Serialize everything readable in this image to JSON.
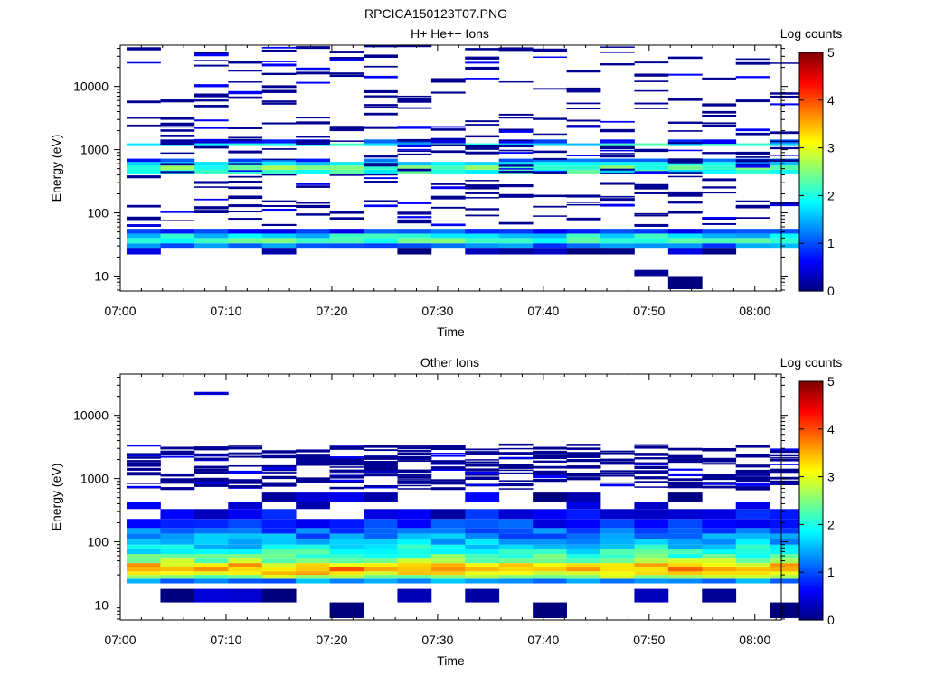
{
  "title": "RPCICA150123T07.PNG",
  "colors": {
    "axis": "#000000",
    "background": "#ffffff",
    "colormap": [
      "#00007f",
      "#0000ff",
      "#0080ff",
      "#00ffff",
      "#80ff80",
      "#ffff00",
      "#ff8000",
      "#ff0000",
      "#7f0000"
    ]
  },
  "chart_data": [
    {
      "type": "heatmap",
      "title": "H+ He++ Ions",
      "xlabel": "Time",
      "ylabel": "Energy (eV)",
      "yscale": "log",
      "xlim_minutes": [
        0,
        62.5
      ],
      "ylim": [
        5.8,
        45000
      ],
      "x_ticks": [
        "07:00",
        "07:10",
        "07:20",
        "07:30",
        "07:40",
        "07:50",
        "08:00"
      ],
      "y_ticks": [
        "10",
        "100",
        "1000",
        "10000"
      ],
      "colorbar": {
        "label": "Log counts",
        "range": [
          0,
          5
        ],
        "ticks": [
          "0",
          "1",
          "2",
          "3",
          "4",
          "5"
        ]
      },
      "n_time_bins": 20,
      "bands": [
        {
          "emin": 28,
          "emax": 33,
          "value": 1.2,
          "fill": "all"
        },
        {
          "emin": 33,
          "emax": 40,
          "value": 2.2,
          "fill": "all"
        },
        {
          "emin": 40,
          "emax": 47,
          "value": 1.8,
          "fill": "all"
        },
        {
          "emin": 47,
          "emax": 56,
          "value": 0.9,
          "fill": "all"
        },
        {
          "emin": 22,
          "emax": 28,
          "value": 0.1,
          "fill": "some"
        },
        {
          "emin": 10,
          "emax": 12.5,
          "value": 0.1,
          "fill": "t15"
        },
        {
          "emin": 6.2,
          "emax": 10,
          "value": 0.1,
          "fill": "t16"
        },
        {
          "emin": 420,
          "emax": 480,
          "value": 2.0,
          "fill": "all"
        },
        {
          "emin": 480,
          "emax": 560,
          "value": 2.3,
          "fill": "all"
        },
        {
          "emin": 560,
          "emax": 640,
          "value": 1.6,
          "fill": "all"
        },
        {
          "emin": 640,
          "emax": 720,
          "value": 1.0,
          "fill": "mostly"
        },
        {
          "emin": 1140,
          "emax": 1260,
          "value": 1.9,
          "fill": "all"
        },
        {
          "emin": 1260,
          "emax": 1450,
          "value": 0.8,
          "fill": "mostly"
        },
        {
          "emin": 60,
          "emax": 42000,
          "value": 0.1,
          "fill": "sparse"
        }
      ]
    },
    {
      "type": "heatmap",
      "title": "Other Ions",
      "xlabel": "Time",
      "ylabel": "Energy (eV)",
      "yscale": "log",
      "xlim_minutes": [
        0,
        62.5
      ],
      "ylim": [
        5.8,
        45000
      ],
      "x_ticks": [
        "07:00",
        "07:10",
        "07:20",
        "07:30",
        "07:40",
        "07:50",
        "08:00"
      ],
      "y_ticks": [
        "10",
        "100",
        "1000",
        "10000"
      ],
      "colorbar": {
        "label": "Log counts",
        "range": [
          0,
          5
        ],
        "ticks": [
          "0",
          "1",
          "2",
          "3",
          "4",
          "5"
        ]
      },
      "n_time_bins": 20,
      "bands": [
        {
          "emin": 22,
          "emax": 26,
          "value": 1.3,
          "fill": "all"
        },
        {
          "emin": 26,
          "emax": 30,
          "value": 2.6,
          "fill": "all"
        },
        {
          "emin": 30,
          "emax": 34,
          "value": 3.2,
          "fill": "all"
        },
        {
          "emin": 34,
          "emax": 40,
          "value": 3.6,
          "fill": "all"
        },
        {
          "emin": 40,
          "emax": 46,
          "value": 3.3,
          "fill": "all"
        },
        {
          "emin": 46,
          "emax": 54,
          "value": 2.6,
          "fill": "all"
        },
        {
          "emin": 54,
          "emax": 64,
          "value": 2.2,
          "fill": "all"
        },
        {
          "emin": 64,
          "emax": 76,
          "value": 2.0,
          "fill": "all"
        },
        {
          "emin": 76,
          "emax": 90,
          "value": 1.8,
          "fill": "all"
        },
        {
          "emin": 90,
          "emax": 110,
          "value": 1.6,
          "fill": "all"
        },
        {
          "emin": 110,
          "emax": 135,
          "value": 1.3,
          "fill": "all"
        },
        {
          "emin": 135,
          "emax": 165,
          "value": 1.1,
          "fill": "all"
        },
        {
          "emin": 165,
          "emax": 230,
          "value": 0.8,
          "fill": "all"
        },
        {
          "emin": 230,
          "emax": 330,
          "value": 0.5,
          "fill": "mostly"
        },
        {
          "emin": 330,
          "emax": 420,
          "value": 0.3,
          "fill": "some"
        },
        {
          "emin": 420,
          "emax": 600,
          "value": 0.3,
          "fill": "some"
        },
        {
          "emin": 11,
          "emax": 18,
          "value": 0.1,
          "fill": "some"
        },
        {
          "emin": 6.2,
          "emax": 11,
          "value": 0.1,
          "fill": "t6t12t19"
        },
        {
          "emin": 650,
          "emax": 3300,
          "value": 0.1,
          "fill": "sparse"
        },
        {
          "emin": 21000,
          "emax": 23500,
          "value": 0.1,
          "fill": "t2"
        }
      ]
    }
  ]
}
